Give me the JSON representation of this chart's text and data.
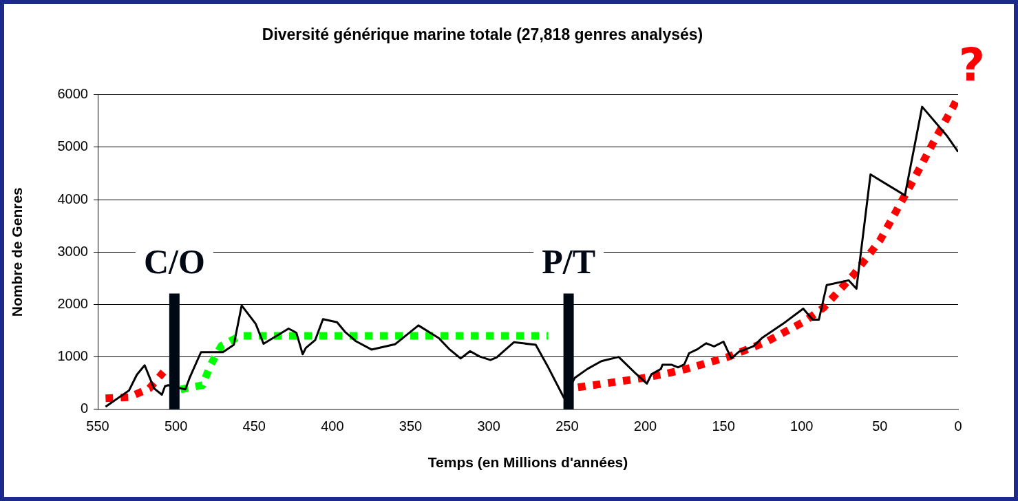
{
  "chart_data": {
    "type": "line",
    "title": "Diversité générique marine totale (27,818 genres analysés)",
    "xlabel": "Temps (en Millions d'années)",
    "ylabel": "Nombre de Genres",
    "xlim": [
      550,
      0
    ],
    "xticks": [
      550,
      500,
      450,
      400,
      350,
      300,
      250,
      200,
      150,
      100,
      50,
      0
    ],
    "ylim": [
      0,
      6000
    ],
    "yticks": [
      0,
      1000,
      2000,
      3000,
      4000,
      5000,
      6000
    ],
    "grid": "y",
    "legend": false,
    "marker": "none",
    "series": [
      {
        "color": "#000000",
        "line_style": "solid",
        "x": [
          545,
          530,
          525,
          520,
          514,
          509,
          507,
          505,
          494,
          491,
          484,
          470,
          463,
          458,
          449,
          444,
          428,
          423,
          419,
          417,
          411,
          406,
          397,
          392,
          385,
          375,
          360,
          345,
          332,
          325,
          318,
          312,
          306,
          299,
          295,
          284,
          270,
          262,
          252,
          245,
          237,
          228,
          217,
          206,
          199,
          196,
          190,
          189,
          183,
          179,
          175,
          172,
          167,
          161,
          156,
          150,
          145,
          140,
          131,
          125,
          112,
          99,
          93,
          89,
          84,
          70,
          65,
          56,
          34,
          23,
          7,
          0
        ],
        "values": [
          50,
          360,
          660,
          840,
          400,
          280,
          440,
          460,
          380,
          620,
          1090,
          1090,
          1230,
          1980,
          1630,
          1250,
          1540,
          1460,
          1050,
          1170,
          1320,
          1720,
          1660,
          1480,
          1300,
          1140,
          1240,
          1600,
          1360,
          1140,
          970,
          1110,
          1010,
          940,
          990,
          1280,
          1230,
          800,
          220,
          600,
          770,
          920,
          1000,
          680,
          490,
          670,
          770,
          850,
          850,
          800,
          860,
          1070,
          1140,
          1260,
          1200,
          1290,
          970,
          1100,
          1200,
          1370,
          1630,
          1920,
          1710,
          1710,
          2370,
          2460,
          2300,
          4480,
          4080,
          5770,
          5210,
          4910
        ]
      },
      {
        "color": "#00ff00",
        "line_style": "dotted",
        "x": [
          497,
          483,
          478,
          471,
          459,
          262
        ],
        "values": [
          380,
          460,
          840,
          1210,
          1400,
          1400
        ]
      },
      {
        "color": "#ff0000",
        "line_style": "dotted",
        "x": [
          545,
          530,
          517,
          508
        ],
        "values": [
          210,
          230,
          400,
          710
        ]
      },
      {
        "color": "#ff0000",
        "line_style": "dotted",
        "x": [
          243,
          203,
          190,
          175,
          148,
          123,
          98,
          86,
          67,
          50,
          29,
          16,
          3,
          1
        ],
        "values": [
          420,
          590,
          660,
          760,
          990,
          1280,
          1680,
          1940,
          2560,
          3220,
          4350,
          5080,
          5780,
          5900
        ]
      }
    ],
    "ref_lines": [
      {
        "axis": "x",
        "value": 501,
        "label": "C/O",
        "color": "#000814"
      },
      {
        "axis": "x",
        "value": 249,
        "label": "P/T",
        "color": "#000814"
      }
    ],
    "annotations": [
      "?"
    ]
  }
}
